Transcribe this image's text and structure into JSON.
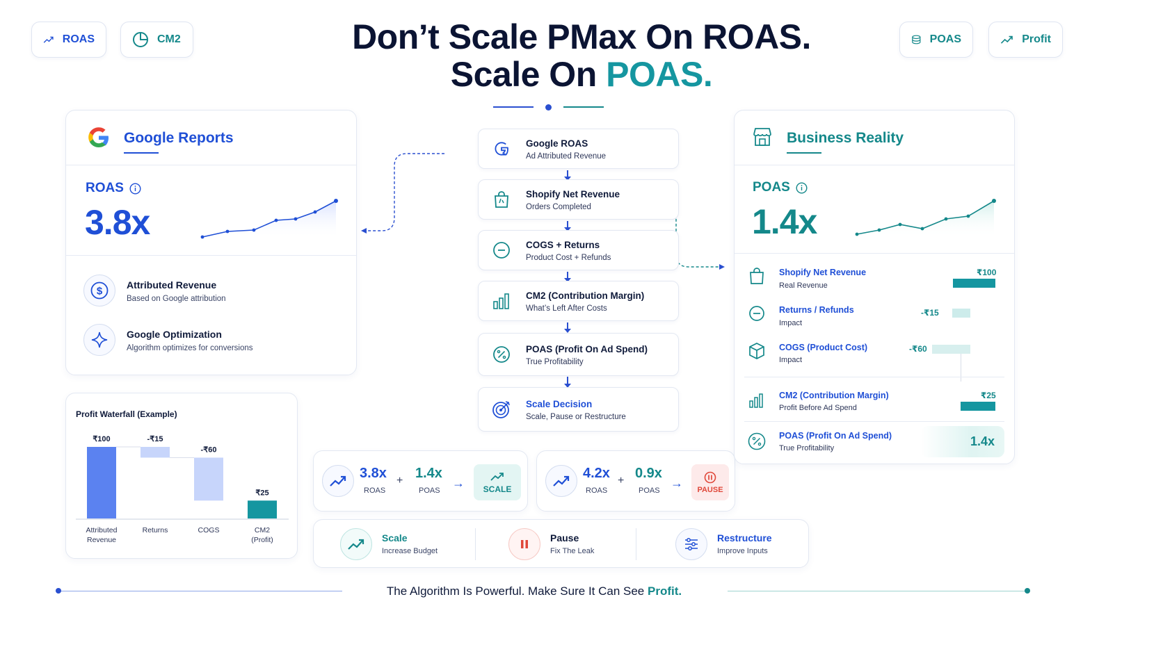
{
  "pills": {
    "roas": "ROAS",
    "cm2": "CM2",
    "poas": "POAS",
    "profit": "Profit"
  },
  "headline": {
    "line1": "Don’t Scale PMax On ROAS.",
    "line2_prefix": "Scale On ",
    "line2_accent": "POAS."
  },
  "google_reports": {
    "title": "Google Reports",
    "metric_label": "ROAS",
    "metric_value": "3.8x",
    "items": [
      {
        "title": "Attributed Revenue",
        "subtitle": "Based on Google attribution"
      },
      {
        "title": "Google Optimization",
        "subtitle": "Algorithm optimizes for conversions"
      }
    ]
  },
  "waterfall": {
    "title": "Profit Waterfall (Example)",
    "chart_data": {
      "type": "bar",
      "categories": [
        "Attributed Revenue",
        "Returns",
        "COGS",
        "CM2 (Profit)"
      ],
      "values": [
        100,
        -15,
        -60,
        25
      ],
      "value_labels": [
        "₹100",
        "-₹15",
        "-₹60",
        "₹25"
      ]
    },
    "cat_labels": [
      "Attributed\nRevenue",
      "Returns",
      "COGS",
      "CM2\n(Profit)"
    ]
  },
  "flow": [
    {
      "title": "Google ROAS",
      "subtitle": "Ad Attributed Revenue"
    },
    {
      "title": "Shopify Net Revenue",
      "subtitle": "Orders Completed"
    },
    {
      "title": "COGS + Returns",
      "subtitle": "Product Cost + Refunds"
    },
    {
      "title": "CM2 (Contribution Margin)",
      "subtitle": "What’s Left After Costs"
    },
    {
      "title": "POAS (Profit On Ad Spend)",
      "subtitle": "True Profitability"
    },
    {
      "title": "Scale Decision",
      "subtitle": "Scale, Pause or Restructure"
    }
  ],
  "decisions": [
    {
      "roas": "3.8x",
      "roas_label": "ROAS",
      "poas": "1.4x",
      "poas_label": "POAS",
      "result": "SCALE",
      "plus": "+"
    },
    {
      "roas": "4.2x",
      "roas_label": "ROAS",
      "poas": "0.9x",
      "poas_label": "POAS",
      "result": "PAUSE",
      "plus": "+"
    }
  ],
  "actions": [
    {
      "title": "Scale",
      "subtitle": "Increase Budget"
    },
    {
      "title": "Pause",
      "subtitle": "Fix The Leak"
    },
    {
      "title": "Restructure",
      "subtitle": "Improve Inputs"
    }
  ],
  "business_reality": {
    "title": "Business Reality",
    "metric_label": "POAS",
    "metric_value": "1.4x",
    "rows": [
      {
        "title": "Shopify Net Revenue",
        "subtitle": "Real Revenue",
        "value": "₹100"
      },
      {
        "title": "Returns / Refunds",
        "subtitle": "Impact",
        "value": "-₹15"
      },
      {
        "title": "COGS (Product Cost)",
        "subtitle": "Impact",
        "value": "-₹60"
      },
      {
        "title": "CM2 (Contribution Margin)",
        "subtitle": "Profit Before Ad Spend",
        "value": "₹25"
      },
      {
        "title": "POAS (Profit On Ad Spend)",
        "subtitle": "True Profitability",
        "value": "1.4x"
      }
    ]
  },
  "footer": {
    "prefix": "The Algorithm Is Powerful. Make Sure It Can See ",
    "accent": "Profit."
  },
  "colors": {
    "blue": "#1f4fd6",
    "teal": "#14888a",
    "navy": "#0b1433",
    "pause_red": "#e0483a"
  }
}
